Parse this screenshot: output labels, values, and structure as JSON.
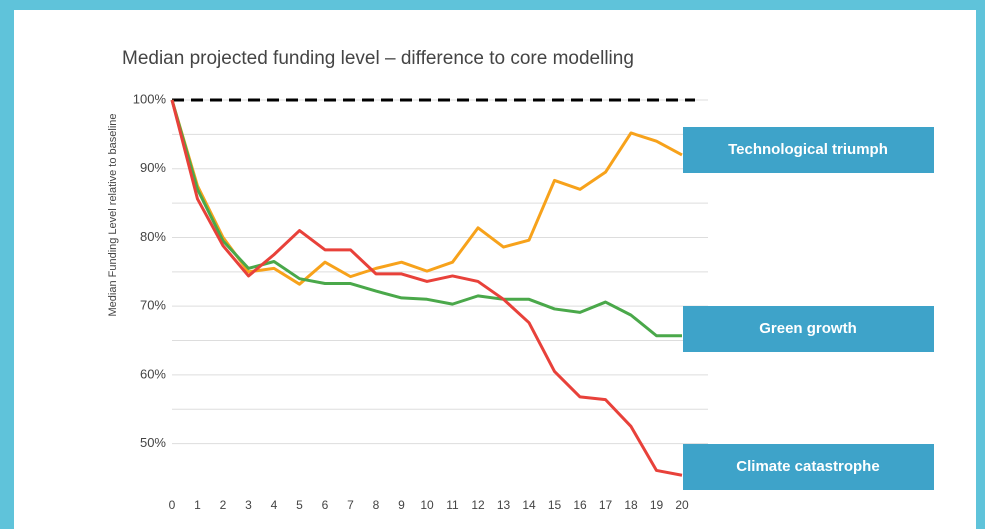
{
  "chart_data": {
    "type": "line",
    "title": "Median projected funding level – difference to core modelling",
    "y_label": "Median Funding Level relative to baseline",
    "x": [
      0,
      1,
      2,
      3,
      4,
      5,
      6,
      7,
      8,
      9,
      10,
      11,
      12,
      13,
      14,
      15,
      16,
      17,
      18,
      19,
      20
    ],
    "xlim": [
      0,
      20
    ],
    "xticks": [
      0,
      1,
      2,
      3,
      4,
      5,
      6,
      7,
      8,
      9,
      10,
      11,
      12,
      13,
      14,
      15,
      16,
      17,
      18,
      19,
      20
    ],
    "ylim": [
      45,
      100
    ],
    "yticks": [
      {
        "value": 50,
        "label": "50%"
      },
      {
        "value": 60,
        "label": "60%"
      },
      {
        "value": 70,
        "label": "70%"
      },
      {
        "value": 80,
        "label": "80%"
      },
      {
        "value": 90,
        "label": "90%"
      },
      {
        "value": 100,
        "label": "100%"
      }
    ],
    "minor_yticks": [
      55,
      65,
      75,
      85,
      95
    ],
    "grid": true,
    "baseline": 100,
    "label_color": "#3ea3c9",
    "series": [
      {
        "name": "Technological triumph",
        "color": "#f7a21b",
        "values": [
          100,
          87.5,
          80,
          75,
          75.5,
          73.2,
          76.4,
          74.3,
          75.5,
          76.4,
          75.1,
          76.4,
          81.4,
          78.6,
          79.6,
          88.3,
          87,
          89.5,
          95.2,
          94,
          92
        ]
      },
      {
        "name": "Green growth",
        "color": "#4aa84a",
        "values": [
          100,
          87,
          79.5,
          75.5,
          76.5,
          74,
          73.3,
          73.3,
          72.2,
          71.2,
          71,
          70.3,
          71.5,
          71,
          71,
          69.6,
          69.1,
          70.6,
          68.7,
          65.7,
          65.7
        ]
      },
      {
        "name": "Climate catastrophe",
        "color": "#e8413a",
        "values": [
          100,
          85.6,
          78.8,
          74.4,
          77.5,
          81,
          78.2,
          78.2,
          74.7,
          74.7,
          73.6,
          74.4,
          73.6,
          71,
          67.6,
          60.5,
          56.8,
          56.4,
          52.5,
          46.1,
          45.4
        ]
      }
    ]
  }
}
